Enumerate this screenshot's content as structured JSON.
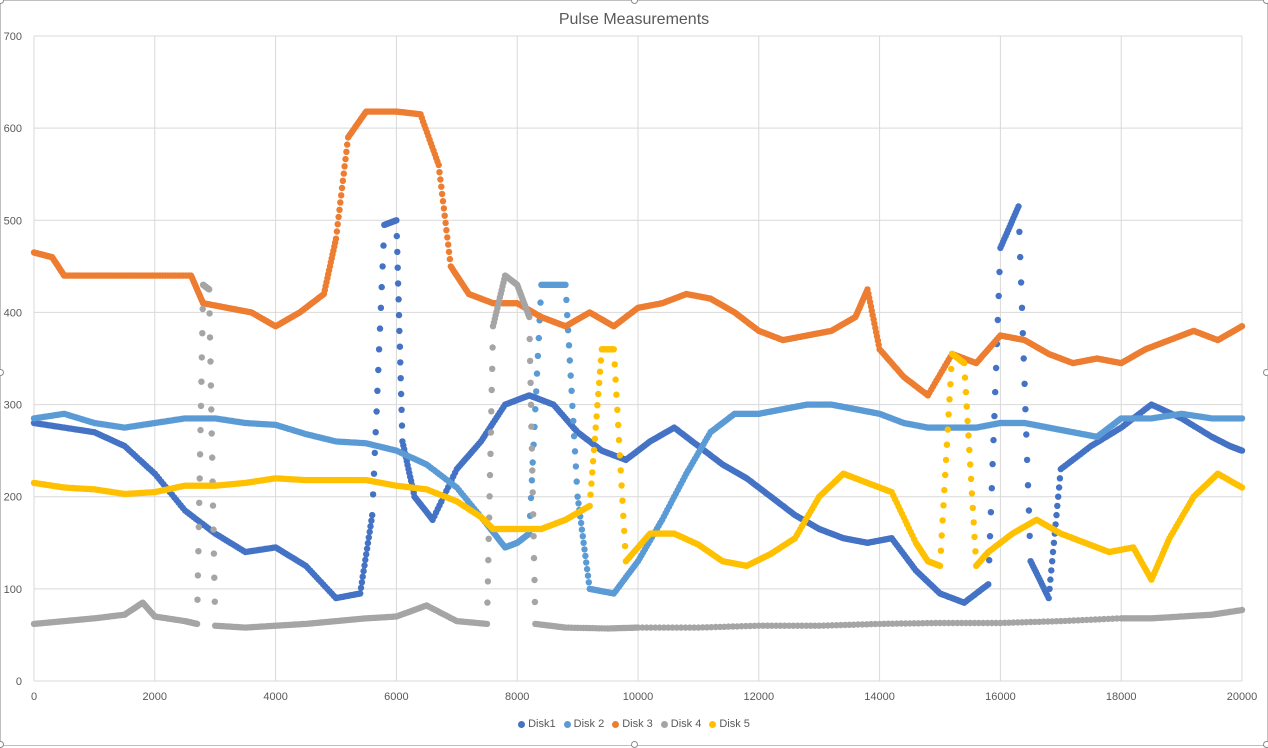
{
  "chart_data": {
    "type": "scatter",
    "title": "Pulse Measurements",
    "xlabel": "",
    "ylabel": "",
    "xlim": [
      0,
      20000
    ],
    "ylim": [
      0,
      700
    ],
    "x_ticks": [
      0,
      2000,
      4000,
      6000,
      8000,
      10000,
      12000,
      14000,
      16000,
      18000,
      20000
    ],
    "y_ticks": [
      0,
      100,
      200,
      300,
      400,
      500,
      600,
      700
    ],
    "grid": true,
    "legend_position": "bottom",
    "series": [
      {
        "name": "Disk1",
        "color": "#4472c4",
        "points": [
          [
            0,
            280
          ],
          [
            500,
            275
          ],
          [
            1000,
            270
          ],
          [
            1500,
            255
          ],
          [
            2000,
            225
          ],
          [
            2500,
            185
          ],
          [
            3000,
            160
          ],
          [
            3500,
            140
          ],
          [
            4000,
            145
          ],
          [
            4500,
            125
          ],
          [
            5000,
            90
          ],
          [
            5400,
            95
          ],
          [
            5600,
            180
          ],
          [
            5800,
            495
          ],
          [
            6000,
            500
          ],
          [
            6100,
            260
          ],
          [
            6300,
            200
          ],
          [
            6600,
            175
          ],
          [
            7000,
            230
          ],
          [
            7400,
            260
          ],
          [
            7800,
            300
          ],
          [
            8200,
            310
          ],
          [
            8600,
            300
          ],
          [
            9000,
            270
          ],
          [
            9400,
            250
          ],
          [
            9800,
            240
          ],
          [
            10200,
            260
          ],
          [
            10600,
            275
          ],
          [
            11000,
            255
          ],
          [
            11400,
            235
          ],
          [
            11800,
            220
          ],
          [
            12200,
            200
          ],
          [
            12600,
            180
          ],
          [
            13000,
            165
          ],
          [
            13400,
            155
          ],
          [
            13800,
            150
          ],
          [
            14200,
            155
          ],
          [
            14600,
            120
          ],
          [
            15000,
            95
          ],
          [
            15400,
            85
          ],
          [
            15800,
            105
          ],
          [
            16000,
            470
          ],
          [
            16300,
            515
          ],
          [
            16500,
            130
          ],
          [
            16800,
            90
          ],
          [
            17000,
            230
          ],
          [
            17500,
            255
          ],
          [
            18000,
            275
          ],
          [
            18500,
            300
          ],
          [
            19000,
            285
          ],
          [
            19500,
            265
          ],
          [
            19800,
            255
          ],
          [
            20000,
            250
          ]
        ]
      },
      {
        "name": "Disk 2",
        "color": "#5b9bd5",
        "points": [
          [
            0,
            285
          ],
          [
            500,
            290
          ],
          [
            1000,
            280
          ],
          [
            1500,
            275
          ],
          [
            2000,
            280
          ],
          [
            2500,
            285
          ],
          [
            3000,
            285
          ],
          [
            3500,
            280
          ],
          [
            4000,
            278
          ],
          [
            4500,
            268
          ],
          [
            5000,
            260
          ],
          [
            5500,
            258
          ],
          [
            6000,
            250
          ],
          [
            6500,
            235
          ],
          [
            7000,
            210
          ],
          [
            7500,
            170
          ],
          [
            7800,
            145
          ],
          [
            8000,
            150
          ],
          [
            8200,
            160
          ],
          [
            8400,
            430
          ],
          [
            8800,
            430
          ],
          [
            9000,
            200
          ],
          [
            9200,
            100
          ],
          [
            9600,
            95
          ],
          [
            10000,
            130
          ],
          [
            10400,
            175
          ],
          [
            10800,
            225
          ],
          [
            11200,
            270
          ],
          [
            11600,
            290
          ],
          [
            12000,
            290
          ],
          [
            12400,
            295
          ],
          [
            12800,
            300
          ],
          [
            13200,
            300
          ],
          [
            13600,
            295
          ],
          [
            14000,
            290
          ],
          [
            14400,
            280
          ],
          [
            14800,
            275
          ],
          [
            15200,
            275
          ],
          [
            15600,
            275
          ],
          [
            16000,
            280
          ],
          [
            16400,
            280
          ],
          [
            16800,
            275
          ],
          [
            17200,
            270
          ],
          [
            17600,
            265
          ],
          [
            18000,
            285
          ],
          [
            18500,
            285
          ],
          [
            19000,
            290
          ],
          [
            19500,
            285
          ],
          [
            20000,
            285
          ]
        ]
      },
      {
        "name": "Disk 3",
        "color": "#ed7d31",
        "points": [
          [
            0,
            465
          ],
          [
            300,
            460
          ],
          [
            500,
            440
          ],
          [
            1000,
            440
          ],
          [
            1500,
            440
          ],
          [
            2000,
            440
          ],
          [
            2600,
            440
          ],
          [
            2800,
            410
          ],
          [
            3200,
            405
          ],
          [
            3600,
            400
          ],
          [
            4000,
            385
          ],
          [
            4400,
            400
          ],
          [
            4800,
            420
          ],
          [
            5000,
            480
          ],
          [
            5200,
            590
          ],
          [
            5500,
            618
          ],
          [
            6000,
            618
          ],
          [
            6400,
            615
          ],
          [
            6700,
            560
          ],
          [
            6900,
            450
          ],
          [
            7200,
            420
          ],
          [
            7600,
            410
          ],
          [
            8000,
            410
          ],
          [
            8400,
            395
          ],
          [
            8800,
            385
          ],
          [
            9200,
            400
          ],
          [
            9600,
            385
          ],
          [
            10000,
            405
          ],
          [
            10400,
            410
          ],
          [
            10800,
            420
          ],
          [
            11200,
            415
          ],
          [
            11600,
            400
          ],
          [
            12000,
            380
          ],
          [
            12400,
            370
          ],
          [
            12800,
            375
          ],
          [
            13200,
            380
          ],
          [
            13600,
            395
          ],
          [
            13800,
            425
          ],
          [
            14000,
            360
          ],
          [
            14400,
            330
          ],
          [
            14800,
            310
          ],
          [
            15200,
            355
          ],
          [
            15600,
            345
          ],
          [
            16000,
            375
          ],
          [
            16400,
            370
          ],
          [
            16800,
            355
          ],
          [
            17200,
            345
          ],
          [
            17600,
            350
          ],
          [
            18000,
            345
          ],
          [
            18400,
            360
          ],
          [
            18800,
            370
          ],
          [
            19200,
            380
          ],
          [
            19600,
            370
          ],
          [
            20000,
            385
          ]
        ]
      },
      {
        "name": "Disk 4",
        "color": "#a5a5a5",
        "points": [
          [
            0,
            62
          ],
          [
            500,
            65
          ],
          [
            1000,
            68
          ],
          [
            1500,
            72
          ],
          [
            1800,
            85
          ],
          [
            2000,
            70
          ],
          [
            2500,
            65
          ],
          [
            2700,
            62
          ],
          [
            2800,
            430
          ],
          [
            2900,
            425
          ],
          [
            3000,
            60
          ],
          [
            3500,
            58
          ],
          [
            4000,
            60
          ],
          [
            4500,
            62
          ],
          [
            5000,
            65
          ],
          [
            5500,
            68
          ],
          [
            6000,
            70
          ],
          [
            6500,
            82
          ],
          [
            7000,
            65
          ],
          [
            7500,
            62
          ],
          [
            7600,
            385
          ],
          [
            7800,
            440
          ],
          [
            8000,
            430
          ],
          [
            8200,
            395
          ],
          [
            8300,
            62
          ],
          [
            8800,
            58
          ],
          [
            9500,
            57
          ],
          [
            10000,
            58
          ],
          [
            11000,
            58
          ],
          [
            12000,
            60
          ],
          [
            13000,
            60
          ],
          [
            14000,
            62
          ],
          [
            15000,
            63
          ],
          [
            16000,
            63
          ],
          [
            17000,
            65
          ],
          [
            18000,
            68
          ],
          [
            18500,
            68
          ],
          [
            19000,
            70
          ],
          [
            19500,
            72
          ],
          [
            20000,
            77
          ]
        ]
      },
      {
        "name": "Disk 5",
        "color": "#ffc000",
        "points": [
          [
            0,
            215
          ],
          [
            500,
            210
          ],
          [
            1000,
            208
          ],
          [
            1500,
            203
          ],
          [
            2000,
            205
          ],
          [
            2500,
            212
          ],
          [
            3000,
            212
          ],
          [
            3500,
            215
          ],
          [
            4000,
            220
          ],
          [
            4500,
            218
          ],
          [
            5000,
            218
          ],
          [
            5500,
            218
          ],
          [
            6000,
            212
          ],
          [
            6500,
            208
          ],
          [
            7000,
            195
          ],
          [
            7400,
            178
          ],
          [
            7600,
            165
          ],
          [
            8000,
            165
          ],
          [
            8400,
            165
          ],
          [
            8800,
            175
          ],
          [
            9200,
            190
          ],
          [
            9400,
            360
          ],
          [
            9600,
            360
          ],
          [
            9800,
            130
          ],
          [
            10200,
            160
          ],
          [
            10600,
            160
          ],
          [
            11000,
            148
          ],
          [
            11400,
            130
          ],
          [
            11800,
            125
          ],
          [
            12200,
            138
          ],
          [
            12600,
            155
          ],
          [
            13000,
            200
          ],
          [
            13400,
            225
          ],
          [
            13800,
            215
          ],
          [
            14200,
            205
          ],
          [
            14600,
            150
          ],
          [
            14800,
            130
          ],
          [
            15000,
            125
          ],
          [
            15200,
            355
          ],
          [
            15400,
            345
          ],
          [
            15600,
            125
          ],
          [
            15800,
            140
          ],
          [
            16200,
            160
          ],
          [
            16600,
            175
          ],
          [
            17000,
            160
          ],
          [
            17400,
            150
          ],
          [
            17800,
            140
          ],
          [
            18200,
            145
          ],
          [
            18500,
            110
          ],
          [
            18800,
            155
          ],
          [
            19200,
            200
          ],
          [
            19600,
            225
          ],
          [
            20000,
            210
          ]
        ]
      }
    ]
  }
}
